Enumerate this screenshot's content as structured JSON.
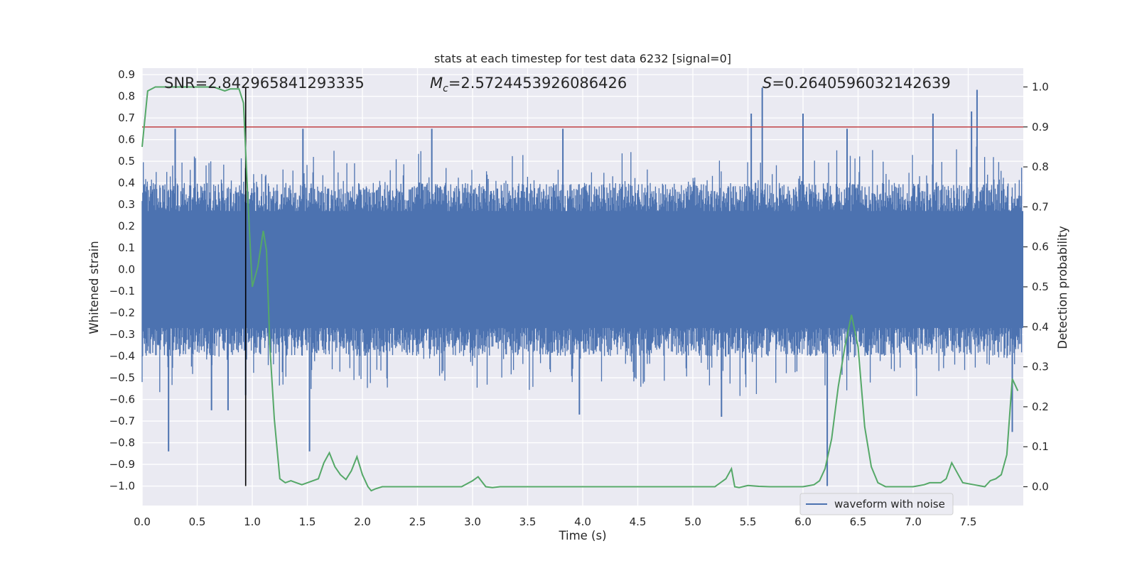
{
  "chart_data": {
    "type": "line",
    "title": "stats at each timestep for test data 6232 [signal=0]",
    "xlabel": "Time (s)",
    "ylabel": "Whitened strain",
    "y2label": "Detection probability",
    "xlim": [
      0.0,
      8.0
    ],
    "ylim": [
      -1.09,
      0.93
    ],
    "y2lim": [
      -0.047,
      1.047
    ],
    "xticks": [
      "0.0",
      "0.5",
      "1.0",
      "1.5",
      "2.0",
      "2.5",
      "3.0",
      "3.5",
      "4.0",
      "4.5",
      "5.0",
      "5.5",
      "6.0",
      "6.5",
      "7.0",
      "7.5"
    ],
    "yticks": [
      "0.9",
      "0.8",
      "0.7",
      "0.6",
      "0.5",
      "0.4",
      "0.3",
      "0.2",
      "0.1",
      "0.0",
      "−0.1",
      "−0.2",
      "−0.3",
      "−0.4",
      "−0.5",
      "−0.6",
      "−0.7",
      "−0.8",
      "−0.9",
      "−1.0"
    ],
    "y2ticks": [
      "1.0",
      "0.9",
      "0.8",
      "0.7",
      "0.6",
      "0.5",
      "0.4",
      "0.3",
      "0.2",
      "0.1",
      "0.0"
    ],
    "annotations": {
      "snr": "SNR=2.842965841293335",
      "mc_symbol": "M",
      "mc_sub": "c",
      "mc_value": "=2.5724453926086426",
      "s_symbol": "S",
      "s_value": "=0.2640596032142639"
    },
    "legend": {
      "label": "waveform with noise",
      "placement": "lower right"
    },
    "threshold": 0.9,
    "marker_time": 0.94,
    "marker_range": [
      -1.0,
      0.84
    ],
    "waveform_envelope": {
      "typical_amplitude": 0.4,
      "max_positive": 0.84,
      "min_negative": -1.0,
      "color": "#4c72b0"
    },
    "waveform_spikes": [
      {
        "t": 0.24,
        "v": -0.84
      },
      {
        "t": 0.3,
        "v": 0.65
      },
      {
        "t": 0.63,
        "v": -0.65
      },
      {
        "t": 0.78,
        "v": -0.65
      },
      {
        "t": 0.94,
        "v": -0.58
      },
      {
        "t": 1.46,
        "v": 0.65
      },
      {
        "t": 1.52,
        "v": -0.84
      },
      {
        "t": 2.63,
        "v": 0.65
      },
      {
        "t": 3.82,
        "v": 0.65
      },
      {
        "t": 3.97,
        "v": -0.67
      },
      {
        "t": 5.26,
        "v": -0.68
      },
      {
        "t": 5.63,
        "v": 0.84
      },
      {
        "t": 5.53,
        "v": 0.72
      },
      {
        "t": 6.0,
        "v": 0.72
      },
      {
        "t": 6.22,
        "v": -1.0
      },
      {
        "t": 6.4,
        "v": 0.65
      },
      {
        "t": 7.18,
        "v": 0.72
      },
      {
        "t": 7.58,
        "v": 0.83
      },
      {
        "t": 7.53,
        "v": 0.73
      },
      {
        "t": 7.9,
        "v": -0.75
      }
    ],
    "series": [
      {
        "name": "waveform with noise",
        "axis": "left",
        "color": "#4c72b0"
      },
      {
        "axis": "right",
        "color": "#55a868",
        "x": [
          0.0,
          0.05,
          0.12,
          0.3,
          0.5,
          0.65,
          0.75,
          0.8,
          0.88,
          0.92,
          0.96,
          1.0,
          1.05,
          1.1,
          1.13,
          1.16,
          1.2,
          1.25,
          1.3,
          1.35,
          1.4,
          1.45,
          1.5,
          1.6,
          1.65,
          1.7,
          1.75,
          1.8,
          1.85,
          1.9,
          1.95,
          2.0,
          2.05,
          2.08,
          2.12,
          2.18,
          2.3,
          2.5,
          2.7,
          2.9,
          3.0,
          3.05,
          3.12,
          3.18,
          3.25,
          3.4,
          3.6,
          3.8,
          4.0,
          4.2,
          4.5,
          4.7,
          5.0,
          5.2,
          5.3,
          5.35,
          5.38,
          5.42,
          5.5,
          5.6,
          5.7,
          5.8,
          5.9,
          6.0,
          6.1,
          6.15,
          6.2,
          6.26,
          6.32,
          6.38,
          6.44,
          6.5,
          6.56,
          6.62,
          6.68,
          6.75,
          6.85,
          7.0,
          7.1,
          7.15,
          7.25,
          7.3,
          7.35,
          7.4,
          7.45,
          7.55,
          7.65,
          7.7,
          7.75,
          7.8,
          7.85,
          7.9,
          7.95
        ],
        "values": [
          0.85,
          0.99,
          1.0,
          1.0,
          1.0,
          1.0,
          0.99,
          0.995,
          0.995,
          0.96,
          0.72,
          0.5,
          0.55,
          0.64,
          0.59,
          0.35,
          0.17,
          0.02,
          0.01,
          0.015,
          0.01,
          0.005,
          0.01,
          0.02,
          0.06,
          0.085,
          0.05,
          0.03,
          0.018,
          0.04,
          0.075,
          0.03,
          0.0,
          -0.01,
          -0.005,
          0.0,
          0.0,
          0.0,
          0.0,
          0.0,
          0.015,
          0.025,
          0.0,
          -0.002,
          0.0,
          0.0,
          0.0,
          0.0,
          0.0,
          0.0,
          0.0,
          0.0,
          0.0,
          0.0,
          0.02,
          0.045,
          0.0,
          -0.002,
          0.003,
          0.001,
          0.0,
          0.0,
          0.0,
          0.0,
          0.005,
          0.015,
          0.045,
          0.12,
          0.25,
          0.35,
          0.43,
          0.35,
          0.15,
          0.05,
          0.01,
          0.0,
          0.0,
          0.0,
          0.005,
          0.01,
          0.01,
          0.02,
          0.06,
          0.035,
          0.01,
          0.005,
          0.0,
          0.015,
          0.02,
          0.03,
          0.08,
          0.27,
          0.24
        ]
      }
    ],
    "colors": {
      "plot_bg": "#eaeaf2",
      "grid": "#ffffff",
      "waveform": "#4c72b0",
      "probability": "#55a868",
      "threshold": "#c44e52",
      "marker": "#000000"
    },
    "grid": true
  }
}
